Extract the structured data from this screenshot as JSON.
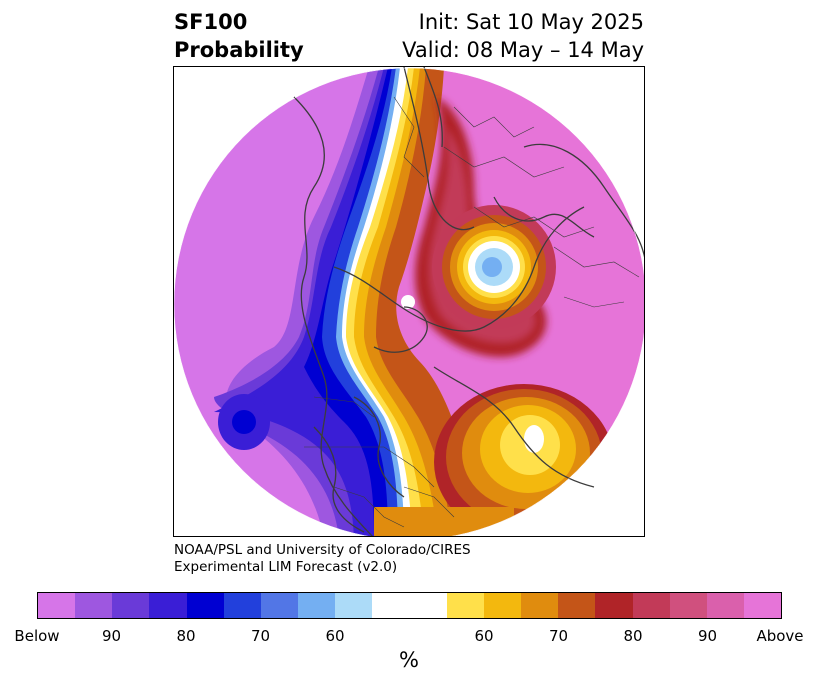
{
  "header": {
    "title_line1": "SF100",
    "title_line2": "Probability",
    "init": "Init: Sat 10 May 2025",
    "valid": "Valid: 08 May – 14 May"
  },
  "credit": {
    "line1": "NOAA/PSL and University of Colorado/CIRES",
    "line2": "Experimental LIM Forecast (v2.0)"
  },
  "colorbar": {
    "colors": [
      "#d675e8",
      "#9e57e0",
      "#6a3ad8",
      "#3a1ed6",
      "#0000d2",
      "#2240dc",
      "#5276e6",
      "#74aff2",
      "#acdbf8",
      "#ffffff",
      "#ffffff",
      "#ffe04a",
      "#f3b80e",
      "#e08c0e",
      "#c45518",
      "#b02428",
      "#c23a58",
      "#d0507e",
      "#da60ac",
      "#e674d8"
    ],
    "tick_labels": [
      "Below",
      "90",
      "80",
      "70",
      "60",
      "60",
      "70",
      "80",
      "90",
      "Above"
    ],
    "unit": "%"
  },
  "map": {
    "projection": "polar-stereographic",
    "region": "Northern Hemisphere / North America"
  }
}
